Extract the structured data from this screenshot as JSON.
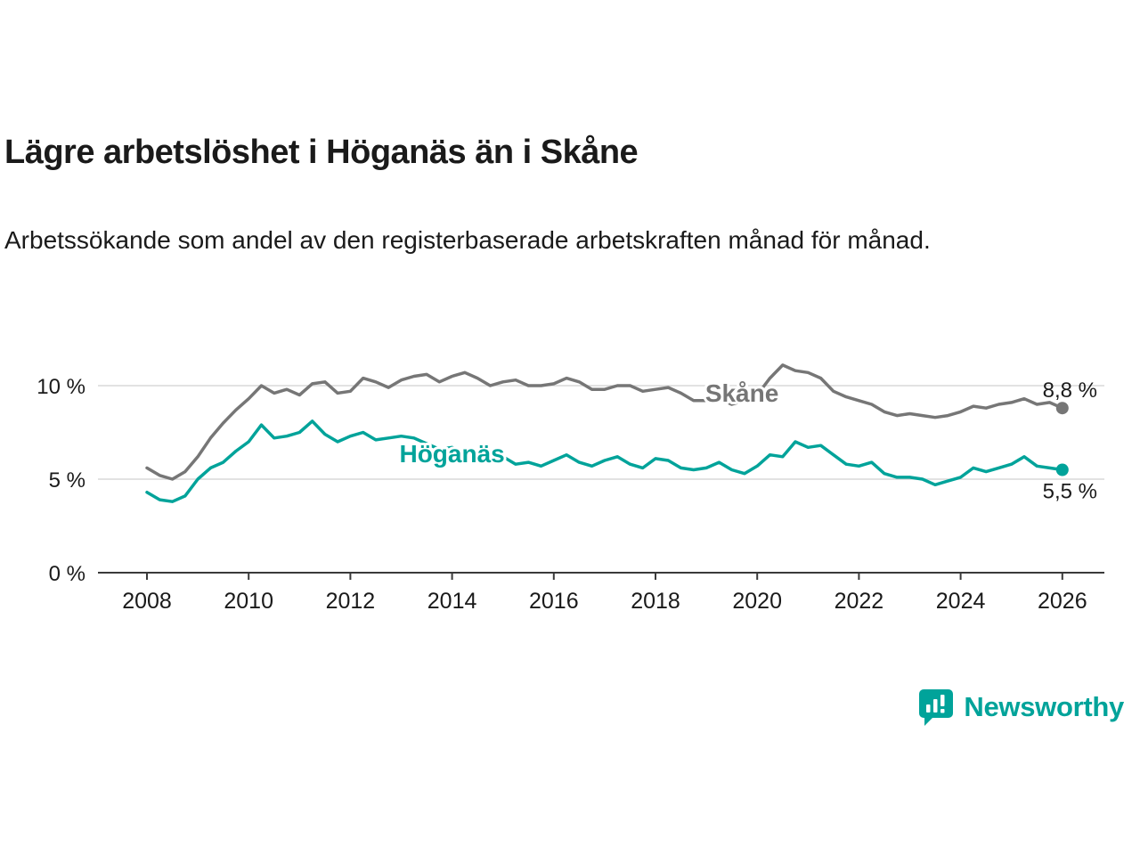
{
  "title": "Lägre arbetslöshet i Höganäs än i Skåne",
  "subtitle": "Arbetssökande som andel av den registerbaserade arbetskraften månad för månad.",
  "colors": {
    "skane": "#767676",
    "hoganas": "#00a39a",
    "grid": "#d9d9d9",
    "axis": "#3a3a3a",
    "text": "#1a1a1a",
    "brand": "#00a39a"
  },
  "footer": {
    "brand": "Newsworthy"
  },
  "chart_data": {
    "type": "line",
    "title": "Lägre arbetslöshet i Höganäs än i Skåne",
    "xlabel": "",
    "ylabel": "Arbetssökande som andel av den registerbaserade arbetskraften",
    "xlim": [
      2008,
      2026
    ],
    "ylim": [
      0,
      12
    ],
    "grid": "horizontal",
    "legend_position": "inline",
    "y_ticks": [
      {
        "value": 0,
        "label": "0 %"
      },
      {
        "value": 5,
        "label": "5 %"
      },
      {
        "value": 10,
        "label": "10 %"
      }
    ],
    "x_ticks": [
      {
        "year": 2008,
        "label": "2008"
      },
      {
        "year": 2010,
        "label": "2010"
      },
      {
        "year": 2012,
        "label": "2012"
      },
      {
        "year": 2014,
        "label": "2014"
      },
      {
        "year": 2016,
        "label": "2016"
      },
      {
        "year": 2018,
        "label": "2018"
      },
      {
        "year": 2020,
        "label": "2020"
      },
      {
        "year": 2022,
        "label": "2022"
      },
      {
        "year": 2024,
        "label": "2024"
      },
      {
        "year": 2026,
        "label": "2026"
      }
    ],
    "x": [
      2008,
      2008.25,
      2008.5,
      2008.75,
      2009,
      2009.25,
      2009.5,
      2009.75,
      2010,
      2010.25,
      2010.5,
      2010.75,
      2011,
      2011.25,
      2011.5,
      2011.75,
      2012,
      2012.25,
      2012.5,
      2012.75,
      2013,
      2013.25,
      2013.5,
      2013.75,
      2014,
      2014.25,
      2014.5,
      2014.75,
      2015,
      2015.25,
      2015.5,
      2015.75,
      2016,
      2016.25,
      2016.5,
      2016.75,
      2017,
      2017.25,
      2017.5,
      2017.75,
      2018,
      2018.25,
      2018.5,
      2018.75,
      2019,
      2019.25,
      2019.5,
      2019.75,
      2020,
      2020.25,
      2020.5,
      2020.75,
      2021,
      2021.25,
      2021.5,
      2021.75,
      2022,
      2022.25,
      2022.5,
      2022.75,
      2023,
      2023.25,
      2023.5,
      2023.75,
      2024,
      2024.25,
      2024.5,
      2024.75,
      2025,
      2025.25,
      2025.5,
      2025.75,
      2026
    ],
    "series": [
      {
        "id": "skane",
        "name": "Skåne",
        "color": "#767676",
        "label_x": 2019.7,
        "label_y": 9.15,
        "end_label": "8,8 %",
        "end_label_position": "above",
        "end_value": 8.8,
        "values": [
          5.6,
          5.2,
          5.0,
          5.4,
          6.2,
          7.2,
          8.0,
          8.7,
          9.3,
          10.0,
          9.6,
          9.8,
          9.5,
          10.1,
          10.2,
          9.6,
          9.7,
          10.4,
          10.2,
          9.9,
          10.3,
          10.5,
          10.6,
          10.2,
          10.5,
          10.7,
          10.4,
          10.0,
          10.2,
          10.3,
          10.0,
          10.0,
          10.1,
          10.4,
          10.2,
          9.8,
          9.8,
          10.0,
          10.0,
          9.7,
          9.8,
          9.9,
          9.6,
          9.2,
          9.2,
          9.3,
          9.0,
          9.2,
          9.5,
          10.4,
          11.1,
          10.8,
          10.7,
          10.4,
          9.7,
          9.4,
          9.2,
          9.0,
          8.6,
          8.4,
          8.5,
          8.4,
          8.3,
          8.4,
          8.6,
          8.9,
          8.8,
          9.0,
          9.1,
          9.3,
          9.0,
          9.1,
          8.8
        ]
      },
      {
        "id": "hoganas",
        "name": "Höganäs",
        "color": "#00a39a",
        "label_x": 2014.0,
        "label_y": 5.9,
        "end_label": "5,5 %",
        "end_label_position": "below",
        "end_value": 5.5,
        "values": [
          4.3,
          3.9,
          3.8,
          4.1,
          5.0,
          5.6,
          5.9,
          6.5,
          7.0,
          7.9,
          7.2,
          7.3,
          7.5,
          8.1,
          7.4,
          7.0,
          7.3,
          7.5,
          7.1,
          7.2,
          7.3,
          7.2,
          6.9,
          6.6,
          6.7,
          6.4,
          6.0,
          6.0,
          6.2,
          5.8,
          5.9,
          5.7,
          6.0,
          6.3,
          5.9,
          5.7,
          6.0,
          6.2,
          5.8,
          5.6,
          6.1,
          6.0,
          5.6,
          5.5,
          5.6,
          5.9,
          5.5,
          5.3,
          5.7,
          6.3,
          6.2,
          7.0,
          6.7,
          6.8,
          6.3,
          5.8,
          5.7,
          5.9,
          5.3,
          5.1,
          5.1,
          5.0,
          4.7,
          4.9,
          5.1,
          5.6,
          5.4,
          5.6,
          5.8,
          6.2,
          5.7,
          5.6,
          5.5
        ]
      }
    ]
  }
}
